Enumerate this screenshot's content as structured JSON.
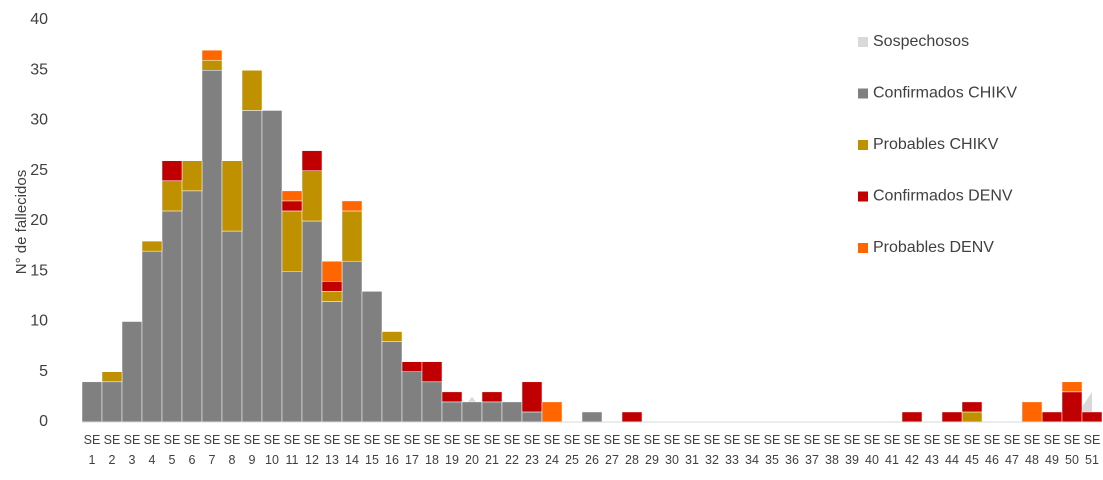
{
  "chart_data": {
    "type": "bar",
    "stacked": true,
    "y_label": "N° de fallecidos",
    "categories": [
      "SE 1",
      "SE 2",
      "SE 3",
      "SE 4",
      "SE 5",
      "SE 6",
      "SE 7",
      "SE 8",
      "SE 9",
      "SE 10",
      "SE 11",
      "SE 12",
      "SE 13",
      "SE 14",
      "SE 15",
      "SE 16",
      "SE 17",
      "SE 18",
      "SE 19",
      "SE 20",
      "SE 21",
      "SE 22",
      "SE 23",
      "SE 24",
      "SE 25",
      "SE 26",
      "SE 27",
      "SE 28",
      "SE 29",
      "SE 30",
      "SE 31",
      "SE 32",
      "SE 33",
      "SE 34",
      "SE 35",
      "SE 36",
      "SE 37",
      "SE 38",
      "SE 39",
      "SE 40",
      "SE 41",
      "SE 42",
      "SE 43",
      "SE 44",
      "SE 45",
      "SE 46",
      "SE 47",
      "SE 48",
      "SE 49",
      "SE 50",
      "SE 51"
    ],
    "series": [
      {
        "name": "Sospechosos",
        "type": "area",
        "color": "#d9d9d9",
        "values": [
          0,
          0,
          0,
          0,
          0,
          0,
          0,
          0,
          0,
          0,
          0,
          0,
          0,
          0,
          0,
          0,
          0,
          0,
          0,
          2.5,
          0,
          0,
          0,
          0,
          0,
          0,
          0,
          0,
          0,
          0,
          0,
          0,
          0,
          0,
          0,
          0,
          0,
          0,
          0,
          0,
          0,
          0,
          0,
          0,
          0,
          0,
          0,
          0,
          0,
          0,
          3
        ]
      },
      {
        "name": "Confirmados CHIKV",
        "type": "bar",
        "color": "#808080",
        "values": [
          4,
          4,
          10,
          17,
          21,
          23,
          35,
          19,
          31,
          31,
          15,
          20,
          12,
          16,
          13,
          8,
          5,
          4,
          2,
          2,
          2,
          2,
          1,
          0,
          0,
          1,
          0,
          0,
          0,
          0,
          0,
          0,
          0,
          0,
          0,
          0,
          0,
          0,
          0,
          0,
          0,
          0,
          0,
          0,
          0,
          0,
          0,
          0,
          0,
          0,
          0
        ]
      },
      {
        "name": "Probables CHIKV",
        "type": "bar",
        "color": "#bf9000",
        "values": [
          0,
          1,
          0,
          1,
          3,
          3,
          1,
          7,
          4,
          0,
          6,
          5,
          1,
          5,
          0,
          1,
          0,
          0,
          0,
          0,
          0,
          0,
          0,
          0,
          0,
          0,
          0,
          0,
          0,
          0,
          0,
          0,
          0,
          0,
          0,
          0,
          0,
          0,
          0,
          0,
          0,
          0,
          0,
          0,
          1,
          0,
          0,
          0,
          0,
          0,
          0
        ]
      },
      {
        "name": "Confirmados DENV",
        "type": "bar",
        "color": "#c00000",
        "values": [
          0,
          0,
          0,
          0,
          2,
          0,
          0,
          0,
          0,
          0,
          1,
          2,
          1,
          0,
          0,
          0,
          1,
          2,
          1,
          0,
          1,
          0,
          3,
          0,
          0,
          0,
          0,
          1,
          0,
          0,
          0,
          0,
          0,
          0,
          0,
          0,
          0,
          0,
          0,
          0,
          0,
          1,
          0,
          1,
          1,
          0,
          0,
          0,
          1,
          3,
          1
        ]
      },
      {
        "name": "Probables DENV",
        "type": "bar",
        "color": "#ff6600",
        "values": [
          0,
          0,
          0,
          0,
          0,
          0,
          1,
          0,
          0,
          0,
          1,
          0,
          2,
          1,
          0,
          0,
          0,
          0,
          0,
          0,
          0,
          0,
          0,
          2,
          0,
          0,
          0,
          0,
          0,
          0,
          0,
          0,
          0,
          0,
          0,
          0,
          0,
          0,
          0,
          0,
          0,
          0,
          0,
          0,
          0,
          0,
          0,
          2,
          0,
          1,
          0
        ]
      }
    ],
    "ylim": [
      0,
      40
    ],
    "yticks": [
      0,
      5,
      10,
      15,
      20,
      25,
      30,
      35,
      40
    ],
    "grid": false,
    "legend": "right"
  }
}
